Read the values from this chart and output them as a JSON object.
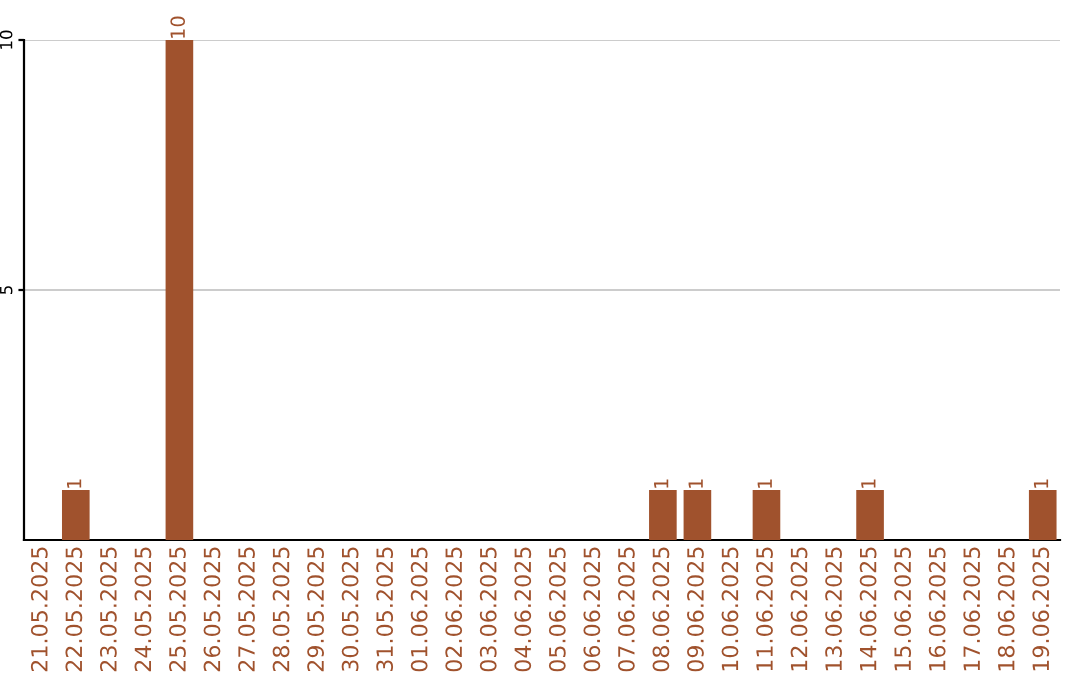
{
  "chart_data": {
    "type": "bar",
    "categories": [
      "21.05.2025",
      "22.05.2025",
      "23.05.2025",
      "24.05.2025",
      "25.05.2025",
      "26.05.2025",
      "27.05.2025",
      "28.05.2025",
      "29.05.2025",
      "30.05.2025",
      "31.05.2025",
      "01.06.2025",
      "02.06.2025",
      "03.06.2025",
      "04.06.2025",
      "05.06.2025",
      "06.06.2025",
      "07.06.2025",
      "08.06.2025",
      "09.06.2025",
      "10.06.2025",
      "11.06.2025",
      "12.06.2025",
      "13.06.2025",
      "14.06.2025",
      "15.06.2025",
      "16.06.2025",
      "17.06.2025",
      "18.06.2025",
      "19.06.2025"
    ],
    "values": [
      0,
      1,
      0,
      0,
      10,
      0,
      0,
      0,
      0,
      0,
      0,
      0,
      0,
      0,
      0,
      0,
      0,
      0,
      1,
      1,
      0,
      1,
      0,
      0,
      1,
      0,
      0,
      0,
      0,
      1
    ],
    "value_labels": [
      null,
      "1",
      null,
      null,
      "10",
      null,
      null,
      null,
      null,
      null,
      null,
      null,
      null,
      null,
      null,
      null,
      null,
      null,
      "1",
      "1",
      null,
      "1",
      null,
      null,
      "1",
      null,
      null,
      null,
      null,
      "1"
    ],
    "color": "#a0522d",
    "ylim": [
      0,
      10
    ],
    "yticks": [
      5,
      10
    ],
    "grid": "y",
    "legend": false
  }
}
